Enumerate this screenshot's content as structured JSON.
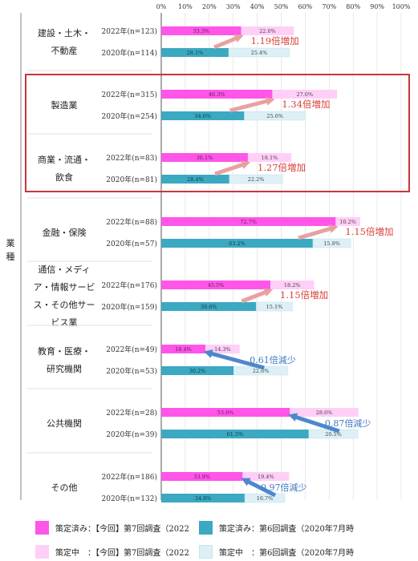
{
  "chart_data": {
    "type": "bar",
    "orientation": "horizontal",
    "stacked": true,
    "x_ticks": [
      "0%",
      "10%",
      "20%",
      "30%",
      "40%",
      "50%",
      "60%",
      "70%",
      "80%",
      "90%",
      "100%"
    ],
    "xlim": [
      0,
      100
    ],
    "ylabel": "業種",
    "grid": true,
    "colors": {
      "done_2022": "#ff55e8",
      "done_2020": "#3aa9c1",
      "plan_2022": "#ffcff8",
      "plan_2020": "#dcf0f5",
      "increase_arrow": "#e8a1a1",
      "increase_text": "#d9403a",
      "decrease_arrow": "#4e88cc",
      "decrease_text": "#3e79c2",
      "highlight_box": "#c9353b"
    },
    "industries": [
      {
        "name_lines": [
          "建設・土木・",
          "不動産"
        ],
        "rows": [
          {
            "label": "2022年(n=123)",
            "done": 33.3,
            "plan": 22.0,
            "year": "2022"
          },
          {
            "label": "2020年(n=114)",
            "done": 28.1,
            "plan": 25.4,
            "year": "2020"
          }
        ],
        "change": "1.19倍増加",
        "direction": "up"
      },
      {
        "name_lines": [
          "製造業"
        ],
        "rows": [
          {
            "label": "2022年(n=315)",
            "done": 46.3,
            "plan": 27.0,
            "year": "2022"
          },
          {
            "label": "2020年(n=254)",
            "done": 34.6,
            "plan": 25.6,
            "year": "2020"
          }
        ],
        "change": "1.34倍増加",
        "direction": "up"
      },
      {
        "name_lines": [
          "商業・流通・",
          "飲食"
        ],
        "rows": [
          {
            "label": "2022年(n=83)",
            "done": 36.1,
            "plan": 18.1,
            "year": "2022"
          },
          {
            "label": "2020年(n=81)",
            "done": 28.4,
            "plan": 22.2,
            "year": "2020"
          }
        ],
        "change": "1.27倍増加",
        "direction": "up"
      },
      {
        "name_lines": [
          "金融・保険"
        ],
        "rows": [
          {
            "label": "2022年(n=88)",
            "done": 72.7,
            "plan": 10.2,
            "year": "2022"
          },
          {
            "label": "2020年(n=57)",
            "done": 63.2,
            "plan": 15.8,
            "year": "2020"
          }
        ],
        "change": "1.15倍増加",
        "direction": "up"
      },
      {
        "name_lines": [
          "通信・メディ",
          "ア・情報サービ",
          "ス・その他サー",
          "ビス業"
        ],
        "rows": [
          {
            "label": "2022年(n=176)",
            "done": 45.5,
            "plan": 18.2,
            "year": "2022"
          },
          {
            "label": "2020年(n=159)",
            "done": 39.6,
            "plan": 15.1,
            "year": "2020"
          }
        ],
        "change": "1.15倍増加",
        "direction": "up"
      },
      {
        "name_lines": [
          "教育・医療・",
          "研究機関"
        ],
        "rows": [
          {
            "label": "2022年(n=49)",
            "done": 18.4,
            "plan": 14.3,
            "year": "2022"
          },
          {
            "label": "2020年(n=53)",
            "done": 30.2,
            "plan": 22.6,
            "year": "2020"
          }
        ],
        "change": "0.61倍減少",
        "direction": "down"
      },
      {
        "name_lines": [
          "公共機関"
        ],
        "rows": [
          {
            "label": "2022年(n=28)",
            "done": 53.6,
            "plan": 28.6,
            "year": "2022"
          },
          {
            "label": "2020年(n=39)",
            "done": 61.5,
            "plan": 20.5,
            "year": "2020"
          }
        ],
        "change": "0.87倍減少",
        "direction": "down"
      },
      {
        "name_lines": [
          "その他"
        ],
        "rows": [
          {
            "label": "2022年(n=186)",
            "done": 33.9,
            "plan": 19.4,
            "year": "2022"
          },
          {
            "label": "2020年(n=132)",
            "done": 34.8,
            "plan": 16.7,
            "year": "2020"
          }
        ],
        "change": "0.97倍減少",
        "direction": "down"
      }
    ],
    "highlight": [
      "製造業",
      "商業・流通・飲食"
    ]
  },
  "legend": {
    "done_2022": "策定済み：【今回】第7回調査（2022",
    "done_2020": "策定済み：第6回調査（2020年7月時",
    "plan_2022": "策定中　：【今回】第7回調査（2022",
    "plan_2020": "策定中　：第6回調査（2020年7月時"
  }
}
